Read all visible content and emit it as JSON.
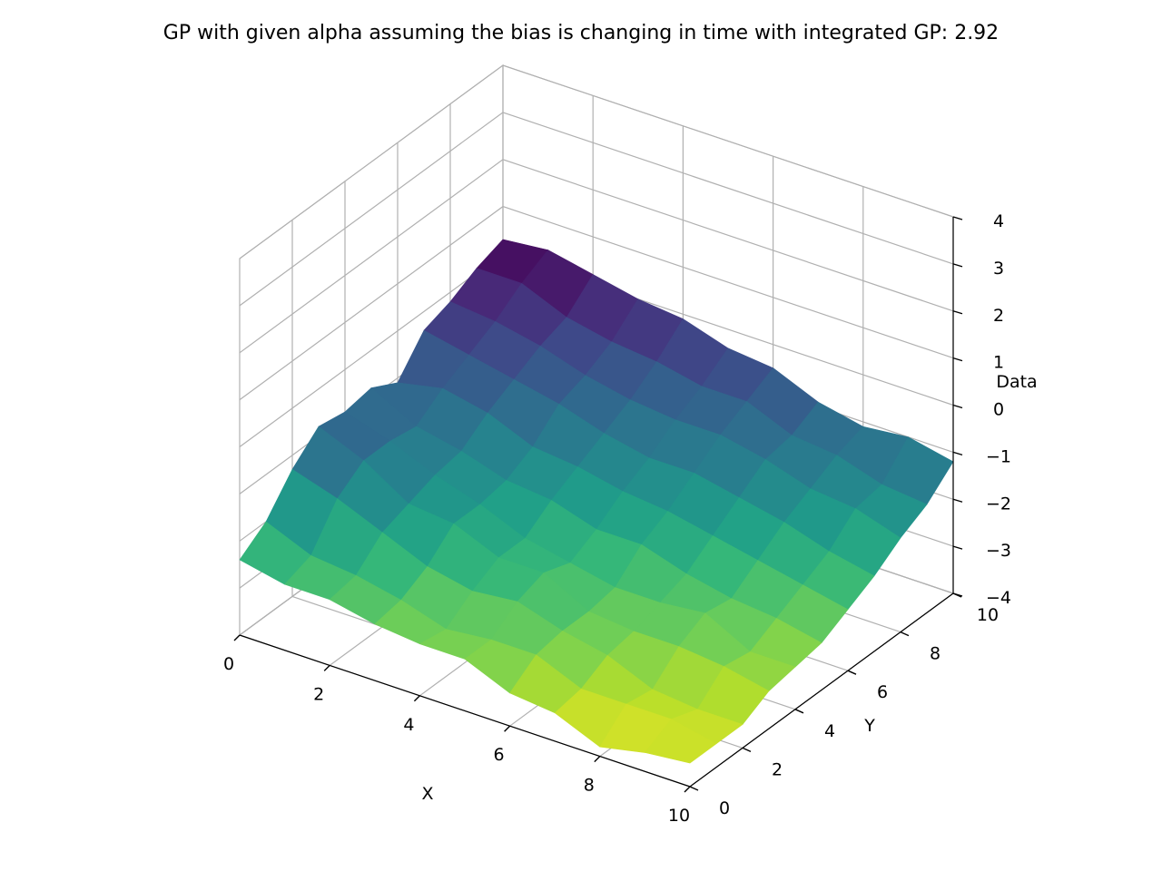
{
  "chart_data": {
    "type": "surface",
    "title": "GP with given alpha assuming the bias is changing in time with integrated GP: 2.92",
    "xlabel": "X",
    "ylabel": "Y",
    "zlabel": "Data",
    "xlim": [
      0,
      10
    ],
    "ylim": [
      0,
      10
    ],
    "zlim": [
      -4,
      4
    ],
    "x_ticks": [
      "0",
      "2",
      "4",
      "6",
      "8",
      "10"
    ],
    "y_ticks": [
      "0",
      "2",
      "4",
      "6",
      "8",
      "10"
    ],
    "z_ticks": [
      "−4",
      "−3",
      "−2",
      "−1",
      "0",
      "1",
      "2",
      "3",
      "4"
    ],
    "colormap": "viridis",
    "colors": [
      "#440154",
      "#3b528b",
      "#21918c",
      "#5ec962",
      "#fde725"
    ],
    "grid": true,
    "x": [
      0,
      1,
      2,
      3,
      4,
      5,
      6,
      7,
      8,
      9,
      10
    ],
    "y": [
      0,
      1,
      2,
      3,
      4,
      5,
      6,
      7,
      8,
      9,
      10
    ],
    "z": [
      [
        -2.4,
        -2.0,
        -1.3,
        -0.8,
        -0.9,
        -0.8,
        -1.1,
        -0.4,
        -0.2,
        0.1,
        0.3
      ],
      [
        -2.6,
        -2.4,
        -1.6,
        -1.2,
        -1.2,
        -1.3,
        -0.9,
        -0.6,
        -0.3,
        0.1,
        0.4
      ],
      [
        -2.6,
        -2.5,
        -2.0,
        -1.8,
        -1.6,
        -1.5,
        -1.1,
        -0.8,
        -0.5,
        -0.3,
        0.2
      ],
      [
        -2.8,
        -2.7,
        -2.4,
        -1.9,
        -1.9,
        -1.8,
        -1.5,
        -1.0,
        -0.8,
        -0.5,
        0.0
      ],
      [
        -2.9,
        -3.0,
        -2.6,
        -2.3,
        -2.3,
        -1.9,
        -1.6,
        -1.3,
        -1.0,
        -0.6,
        -0.1
      ],
      [
        -2.9,
        -2.9,
        -2.5,
        -2.3,
        -2.5,
        -2.2,
        -1.8,
        -1.5,
        -1.1,
        -0.8,
        -0.4
      ],
      [
        -3.3,
        -2.9,
        -2.8,
        -2.8,
        -2.7,
        -2.2,
        -1.9,
        -1.5,
        -1.1,
        -0.8,
        -0.5
      ],
      [
        -3.4,
        -3.3,
        -3.0,
        -2.9,
        -2.7,
        -2.5,
        -2.1,
        -1.7,
        -1.3,
        -1.2,
        -0.9
      ],
      [
        -3.8,
        -3.3,
        -3.4,
        -2.9,
        -2.6,
        -2.7,
        -2.3,
        -1.9,
        -1.6,
        -1.3,
        -1.1
      ],
      [
        -3.6,
        -3.3,
        -3.5,
        -3.0,
        -3.1,
        -2.8,
        -2.5,
        -2.2,
        -1.7,
        -1.6,
        -1.0
      ],
      [
        -3.5,
        -3.5,
        -3.5,
        -3.2,
        -3.1,
        -3.0,
        -2.7,
        -2.4,
        -2.0,
        -1.7,
        -1.2
      ]
    ]
  }
}
